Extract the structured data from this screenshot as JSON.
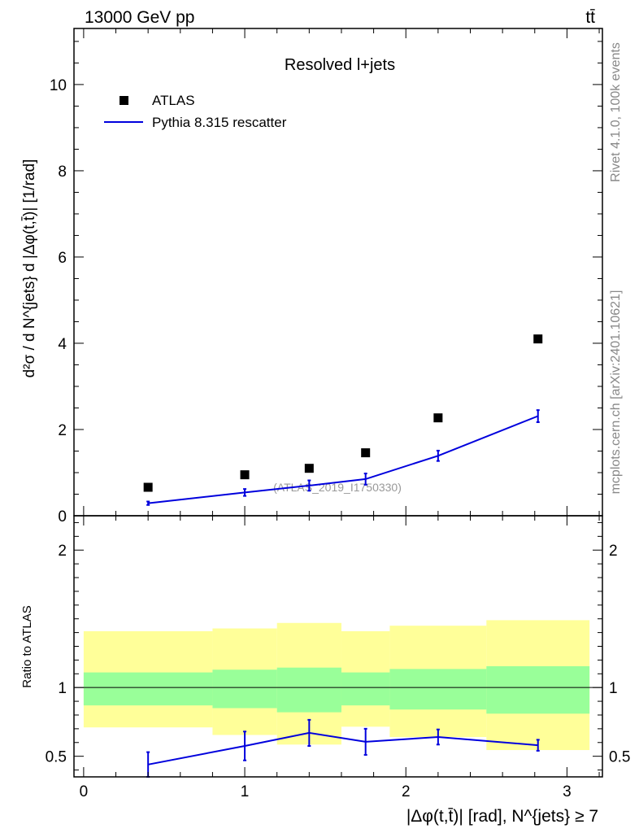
{
  "header": {
    "energy_label": "13000 GeV pp",
    "process_label": "tt̄"
  },
  "side_labels": {
    "rivet": "Rivet 4.1.0,  100k events",
    "source": "mcplots.cern.ch [arXiv:2401.10621]"
  },
  "watermark": "(ATLAS_2019_I1750330)",
  "colors": {
    "mc": "#0000dd",
    "data": "#000000",
    "band_inner": "#99ff99",
    "band_outer": "#ffff99",
    "frame": "#000000"
  },
  "chart_data": {
    "type": "scatter",
    "title": "Resolved l+jets",
    "xlabel": "|Δφ(t,t̄)| [rad], N^{jets} ≥ 7",
    "ylabel": "d²σ / d N^{jets} d |Δφ(t,t̄)| [1/rad]",
    "ratio_ylabel": "Ratio to ATLAS",
    "xlim": [
      -0.06,
      3.22
    ],
    "ylim": [
      0,
      11.3
    ],
    "ratio_ylim": [
      0.35,
      2.25
    ],
    "x_ticks": [
      0,
      1,
      2,
      3
    ],
    "y_ticks": [
      0,
      2,
      4,
      6,
      8,
      10
    ],
    "ratio_ticks": [
      0.5,
      1,
      2
    ],
    "ratio_tick_labels": [
      "0.5",
      "1",
      "2"
    ],
    "legend": [
      {
        "label": "ATLAS",
        "marker": "square"
      },
      {
        "label": "Pythia 8.315 rescatter",
        "marker": "line"
      }
    ],
    "bins": [
      {
        "lo": 0.0,
        "hi": 0.8,
        "x": 0.4
      },
      {
        "lo": 0.8,
        "hi": 1.2,
        "x": 1.0
      },
      {
        "lo": 1.2,
        "hi": 1.6,
        "x": 1.4
      },
      {
        "lo": 1.6,
        "hi": 1.9,
        "x": 1.75
      },
      {
        "lo": 1.9,
        "hi": 2.5,
        "x": 2.2
      },
      {
        "lo": 2.5,
        "hi": 3.14,
        "x": 2.82
      }
    ],
    "series": [
      {
        "name": "ATLAS",
        "x": [
          0.4,
          1.0,
          1.4,
          1.75,
          2.2,
          2.82
        ],
        "y": [
          0.66,
          0.95,
          1.1,
          1.46,
          2.27,
          4.1
        ]
      },
      {
        "name": "Pythia 8.315 rescatter",
        "x": [
          0.4,
          1.0,
          1.4,
          1.75,
          2.2,
          2.82
        ],
        "y": [
          0.29,
          0.54,
          0.7,
          0.85,
          1.39,
          2.31
        ],
        "yerr": [
          0.04,
          0.08,
          0.12,
          0.13,
          0.12,
          0.14
        ]
      }
    ],
    "ratio": {
      "x": [
        0.4,
        1.0,
        1.4,
        1.75,
        2.2,
        2.82
      ],
      "y": [
        0.44,
        0.575,
        0.67,
        0.605,
        0.64,
        0.58
      ],
      "yerr": [
        0.09,
        0.105,
        0.095,
        0.095,
        0.055,
        0.04
      ],
      "band_inner": [
        [
          0.87,
          1.11
        ],
        [
          0.85,
          1.13
        ],
        [
          0.82,
          1.145
        ],
        [
          0.87,
          1.11
        ],
        [
          0.84,
          1.135
        ],
        [
          0.81,
          1.155
        ]
      ],
      "band_outer": [
        [
          0.71,
          1.41
        ],
        [
          0.655,
          1.43
        ],
        [
          0.585,
          1.47
        ],
        [
          0.715,
          1.41
        ],
        [
          0.64,
          1.45
        ],
        [
          0.545,
          1.49
        ]
      ]
    }
  }
}
